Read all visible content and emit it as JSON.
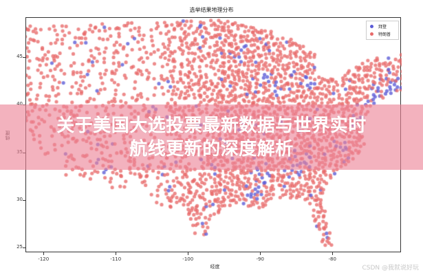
{
  "chart_data": {
    "type": "scatter",
    "title": "选举结果地理分布",
    "xlabel": "经度",
    "ylabel": "纬度",
    "xlim": [
      -122.5,
      -70.5
    ],
    "ylim": [
      24.5,
      49.2
    ],
    "xticks": [
      -120,
      -110,
      -100,
      -90,
      -80
    ],
    "xtick_labels": [
      "-120",
      "-110",
      "-100",
      "-90",
      "-80"
    ],
    "yticks": [
      25,
      30,
      35,
      40,
      45
    ],
    "ytick_labels": [
      "25",
      "30",
      "35",
      "40",
      "45"
    ],
    "grid": false,
    "legend_position": "upper right",
    "series": [
      {
        "name": "拜登",
        "color": "#5b5bd6",
        "share_estimate": 0.12
      },
      {
        "name": "特朗普",
        "color": "#e86a6a",
        "share_estimate": 0.88
      }
    ],
    "outline_lonlat": [
      [
        -124.5,
        48.5
      ],
      [
        -95,
        49
      ],
      [
        -89,
        48
      ],
      [
        -84.5,
        46.5
      ],
      [
        -82.5,
        45.5
      ],
      [
        -82.5,
        43
      ],
      [
        -79,
        43.3
      ],
      [
        -76,
        44.5
      ],
      [
        -75,
        45
      ],
      [
        -71,
        45.2
      ],
      [
        -69,
        47.3
      ],
      [
        -67,
        45
      ],
      [
        -70,
        43.5
      ],
      [
        -70.5,
        41.5
      ],
      [
        -74,
        40.5
      ],
      [
        -75.5,
        38.5
      ],
      [
        -76,
        37
      ],
      [
        -75.5,
        35.5
      ],
      [
        -77.5,
        34.2
      ],
      [
        -79,
        33.3
      ],
      [
        -80.8,
        32
      ],
      [
        -81.4,
        30.5
      ],
      [
        -80.3,
        27
      ],
      [
        -80.2,
        25.2
      ],
      [
        -81.3,
        25.3
      ],
      [
        -82.7,
        27.7
      ],
      [
        -82.8,
        29.5
      ],
      [
        -84.3,
        30
      ],
      [
        -86,
        30.3
      ],
      [
        -88.5,
        30.3
      ],
      [
        -89.6,
        29.2
      ],
      [
        -91,
        29.3
      ],
      [
        -93.8,
        29.6
      ],
      [
        -95,
        29.2
      ],
      [
        -97.2,
        27.5
      ],
      [
        -97.2,
        25.9
      ],
      [
        -99.2,
        26.5
      ],
      [
        -101.4,
        29.8
      ],
      [
        -103,
        29
      ],
      [
        -104.5,
        29.8
      ],
      [
        -106.5,
        31.8
      ],
      [
        -108.2,
        31.4
      ],
      [
        -111,
        31.3
      ],
      [
        -114.8,
        32.5
      ],
      [
        -117.1,
        32.5
      ],
      [
        -118.5,
        34
      ],
      [
        -120.6,
        34.6
      ],
      [
        -121.9,
        36.6
      ],
      [
        -123.8,
        39.5
      ],
      [
        -124.2,
        42
      ],
      [
        -124,
        46.2
      ],
      [
        -124.5,
        48.5
      ]
    ],
    "blue_clusters_lonlat": [
      [
        -74.5,
        40.8,
        1.4
      ],
      [
        -71.5,
        42.3,
        1.2
      ],
      [
        -77,
        38.9,
        1.0
      ],
      [
        -87.7,
        41.8,
        0.8
      ],
      [
        -83.1,
        42.3,
        0.7
      ],
      [
        -90.2,
        32.3,
        1.2
      ],
      [
        -91,
        31,
        0.9
      ],
      [
        -84.4,
        33.7,
        1.0
      ],
      [
        -80.2,
        26.2,
        0.7
      ],
      [
        -118.3,
        34.1,
        1.0
      ],
      [
        -122.3,
        37.8,
        1.0
      ],
      [
        -122.3,
        47.6,
        0.7
      ],
      [
        -105,
        39.7,
        0.8
      ],
      [
        -106.6,
        35.1,
        1.0
      ],
      [
        -93.3,
        45,
        0.8
      ],
      [
        -89.5,
        43,
        0.8
      ],
      [
        -86,
        32.5,
        1.0
      ],
      [
        -78.6,
        35.8,
        0.9
      ],
      [
        -112.1,
        33.4,
        0.9
      ]
    ]
  },
  "legend": {
    "items": [
      {
        "label": "拜登",
        "color": "#5b5bd6"
      },
      {
        "label": "特朗普",
        "color": "#e86a6a"
      }
    ]
  },
  "banner": {
    "line1": "关于美国大选投票最新数据与世界实时",
    "line2": "航线更新的深度解析",
    "background": "#ec8296"
  },
  "watermark": "CSDN @我就说好玩"
}
